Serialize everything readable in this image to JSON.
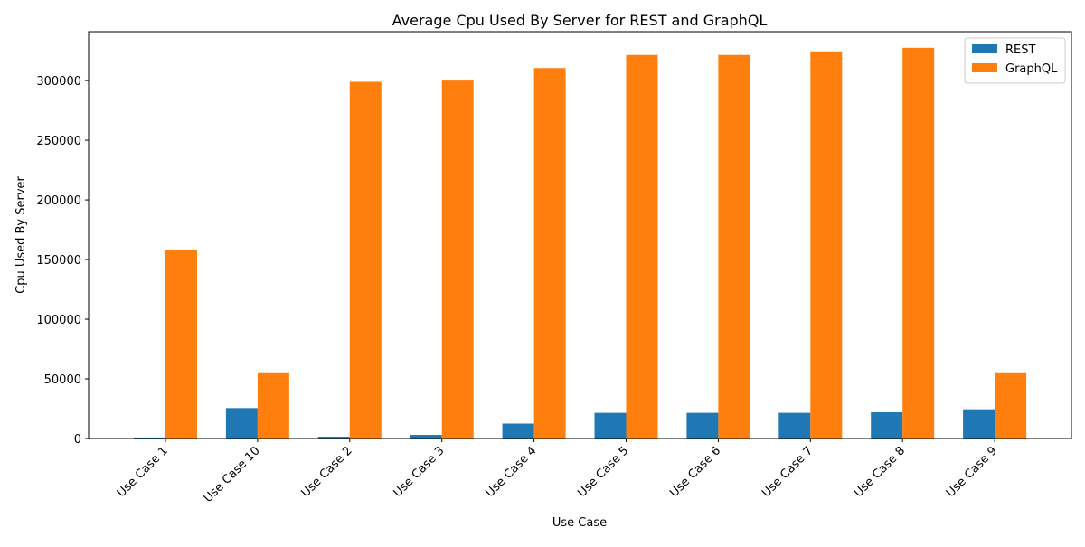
{
  "chart_data": {
    "type": "bar",
    "title": "Average Cpu Used By Server for REST and GraphQL",
    "xlabel": "Use Case",
    "ylabel": "Cpu Used By Server",
    "categories": [
      "Use Case 1",
      "Use Case 10",
      "Use Case 2",
      "Use Case 3",
      "Use Case 4",
      "Use Case 5",
      "Use Case 6",
      "Use Case 7",
      "Use Case 8",
      "Use Case 9"
    ],
    "series": [
      {
        "name": "REST",
        "color": "#1f77b4",
        "values": [
          800,
          25500,
          1500,
          3000,
          12500,
          21500,
          21500,
          21500,
          22000,
          24500
        ]
      },
      {
        "name": "GraphQL",
        "color": "#ff7f0e",
        "values": [
          158000,
          55500,
          299000,
          300000,
          310500,
          321500,
          321500,
          324500,
          327500,
          55500
        ]
      }
    ],
    "ylim": [
      0,
      341000
    ],
    "yticks": [
      "0",
      "50000",
      "100000",
      "150000",
      "200000",
      "250000",
      "300000"
    ],
    "ytick_values": [
      0,
      50000,
      100000,
      150000,
      200000,
      250000,
      300000
    ],
    "legend_position": "top-right",
    "grid": false
  }
}
